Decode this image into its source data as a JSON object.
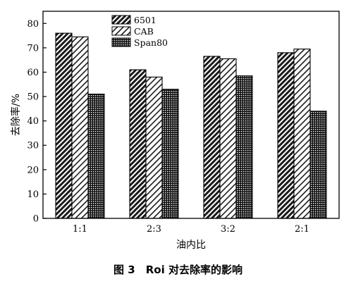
{
  "chart_data": {
    "type": "bar",
    "categories": [
      "1:1",
      "2:3",
      "3:2",
      "2:1"
    ],
    "series": [
      {
        "name": "6501",
        "values": [
          76,
          61,
          66.5,
          68
        ],
        "pattern": "diagonal-dense"
      },
      {
        "name": "CAB",
        "values": [
          74.5,
          58,
          65.5,
          69.5
        ],
        "pattern": "diagonal-light"
      },
      {
        "name": "Span80",
        "values": [
          51,
          53,
          58.5,
          44
        ],
        "pattern": "crosshatch"
      }
    ],
    "xlabel": "油内比",
    "ylabel": "去除率/%",
    "ylim": [
      0,
      85
    ],
    "yticks": [
      0,
      10,
      20,
      30,
      40,
      50,
      60,
      70,
      80
    ],
    "grid": false,
    "legend_position": "top-center"
  },
  "caption": {
    "figure_label": "图 3",
    "text": "Roi 对去除率的影响"
  }
}
